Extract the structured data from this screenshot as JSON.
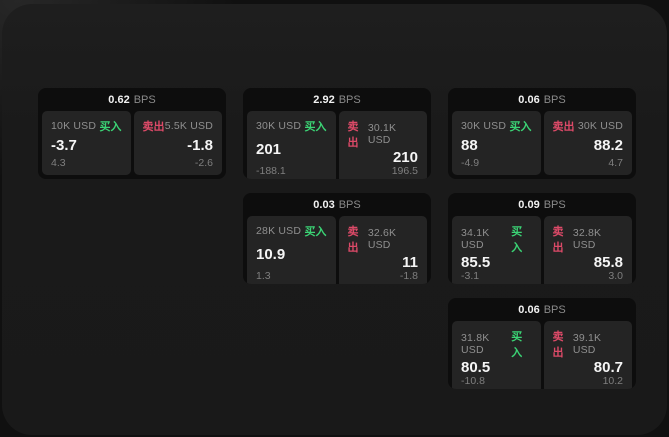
{
  "colors": {
    "background": "#1a1a1a",
    "card_bg": "#0d0d0d",
    "panel_bg": "#242424",
    "buy_green": "#3bd475",
    "sell_red": "#dd4a68",
    "text_primary": "#f2f2f2",
    "text_muted": "#8a8a8a"
  },
  "labels": {
    "buy": "买入",
    "sell": "卖出",
    "bps": "BPS"
  },
  "cards": [
    {
      "spread": "0.62",
      "buy": {
        "amount": "10K USD",
        "price": "-3.7",
        "delta": "4.3"
      },
      "sell": {
        "amount": "5.5K USD",
        "price": "-1.8",
        "delta": "-2.6"
      }
    },
    {
      "spread": "2.92",
      "buy": {
        "amount": "30K USD",
        "price": "201",
        "delta": "-188.1"
      },
      "sell": {
        "amount": "30.1K USD",
        "price": "210",
        "delta": "196.5"
      }
    },
    {
      "spread": "0.06",
      "buy": {
        "amount": "30K USD",
        "price": "88",
        "delta": "-4.9"
      },
      "sell": {
        "amount": "30K USD",
        "price": "88.2",
        "delta": "4.7"
      }
    },
    {
      "spread": "0.03",
      "buy": {
        "amount": "28K USD",
        "price": "10.9",
        "delta": "1.3"
      },
      "sell": {
        "amount": "32.6K USD",
        "price": "11",
        "delta": "-1.8"
      }
    },
    {
      "spread": "0.09",
      "buy": {
        "amount": "34.1K USD",
        "price": "85.5",
        "delta": "-3.1"
      },
      "sell": {
        "amount": "32.8K USD",
        "price": "85.8",
        "delta": "3.0"
      }
    },
    {
      "spread": "0.06",
      "buy": {
        "amount": "31.8K USD",
        "price": "80.5",
        "delta": "-10.8"
      },
      "sell": {
        "amount": "39.1K USD",
        "price": "80.7",
        "delta": "10.2"
      }
    }
  ]
}
